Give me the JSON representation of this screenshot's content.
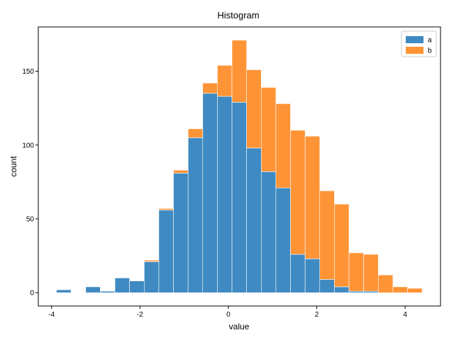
{
  "chart_data": {
    "type": "bar",
    "stacked": true,
    "title": "Histogram",
    "xlabel": "value",
    "ylabel": "count",
    "xlim": [
      -4.3,
      4.8
    ],
    "ylim": [
      -9,
      180
    ],
    "bin_width": 0.331,
    "bin_starts": [
      -3.89,
      -3.559,
      -3.228,
      -2.897,
      -2.566,
      -2.235,
      -1.904,
      -1.573,
      -1.242,
      -0.911,
      -0.58,
      -0.249,
      0.082,
      0.413,
      0.744,
      1.075,
      1.406,
      1.737,
      2.068,
      2.399,
      2.73,
      3.061,
      3.392,
      3.723,
      4.054
    ],
    "x_ticks": [
      -4,
      -2,
      0,
      2,
      4
    ],
    "x_tick_labels": [
      "-4",
      "-2",
      "0",
      "2",
      "4"
    ],
    "y_ticks": [
      0,
      50,
      100,
      150
    ],
    "y_tick_labels": [
      "0",
      "50",
      "100",
      "150"
    ],
    "series": [
      {
        "name": "a",
        "color": "#3f8ac2",
        "values": [
          2,
          0,
          4,
          1,
          10,
          8,
          21,
          56,
          81,
          105,
          135,
          133,
          129,
          98,
          82,
          71,
          26,
          23,
          9,
          4,
          1,
          1,
          0,
          0,
          0
        ]
      },
      {
        "name": "b",
        "color": "#ff9436",
        "values": [
          0,
          0,
          0,
          0,
          0,
          0,
          1,
          1,
          2,
          6,
          7,
          21,
          42,
          53,
          57,
          57,
          84,
          83,
          60,
          56,
          26,
          25,
          12,
          4,
          3
        ]
      }
    ],
    "legend": {
      "position": "top-right"
    },
    "grid": false
  }
}
